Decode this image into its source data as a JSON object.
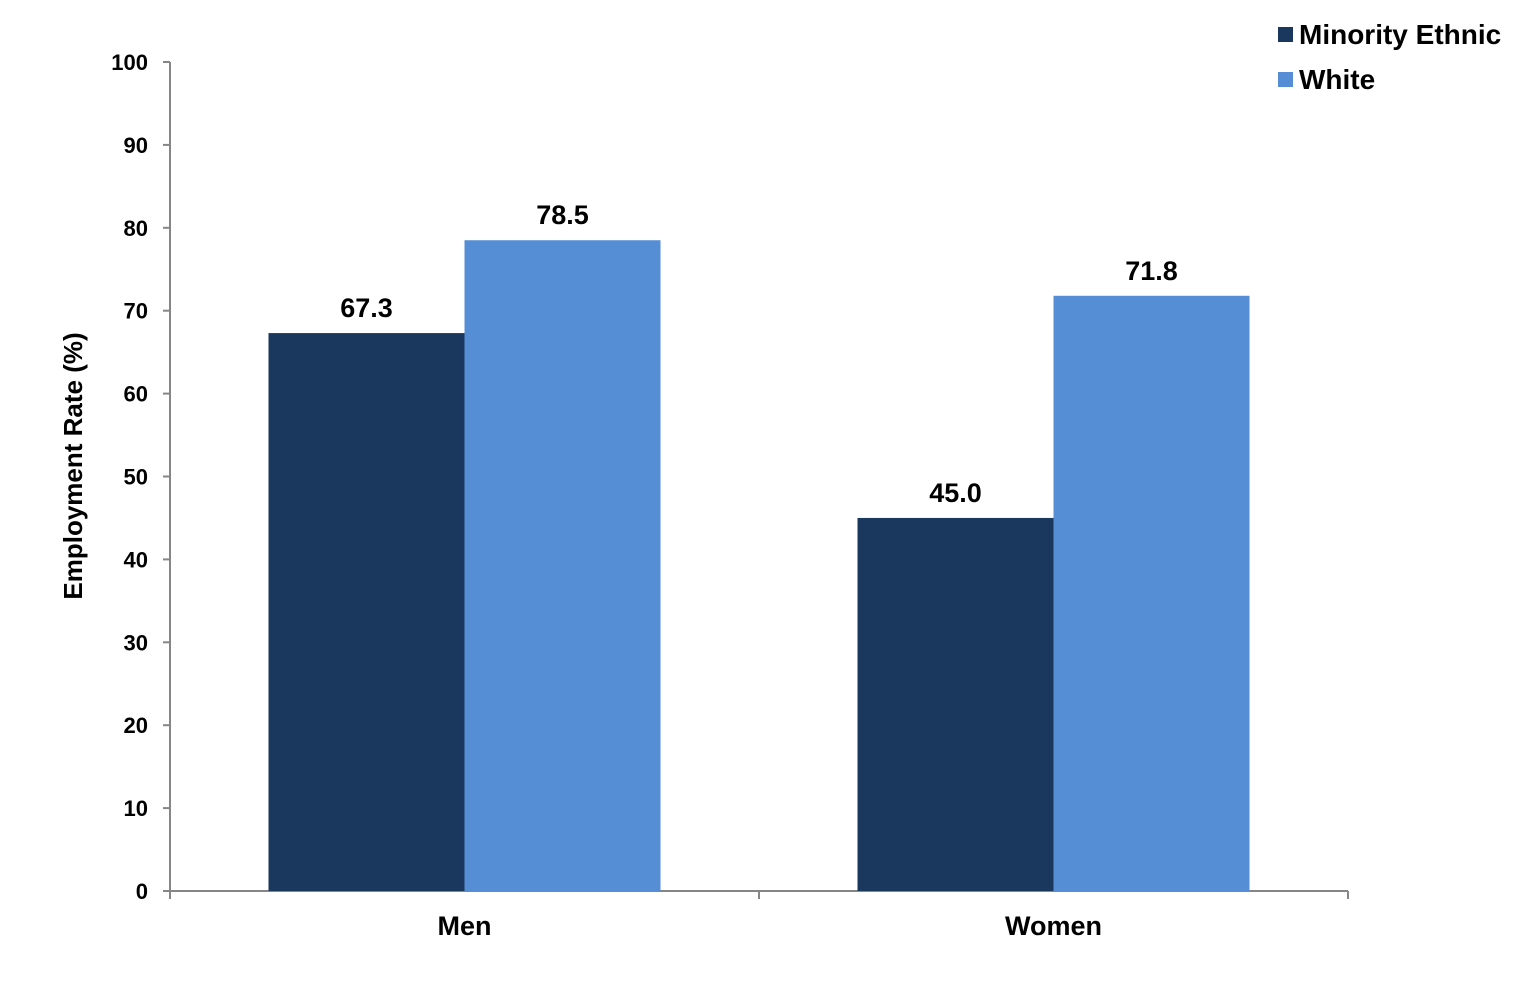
{
  "chart_data": {
    "type": "bar",
    "categories": [
      "Men",
      "Women"
    ],
    "series": [
      {
        "name": "Minority Ethnic",
        "values": [
          67.3,
          45.0
        ],
        "labels": [
          "67.3",
          "45.0"
        ],
        "color": "#1a375e"
      },
      {
        "name": "White",
        "values": [
          78.5,
          71.8
        ],
        "labels": [
          "78.5",
          "71.8"
        ],
        "color": "#558ed5"
      }
    ],
    "title": "",
    "xlabel": "",
    "ylabel": "Employment Rate (%)",
    "ylim": [
      0,
      100
    ],
    "yticks": [
      "0",
      "10",
      "20",
      "30",
      "40",
      "50",
      "60",
      "70",
      "80",
      "90",
      "100"
    ],
    "grid": false,
    "legend_position": "top-right",
    "axis_color": "#868686"
  }
}
